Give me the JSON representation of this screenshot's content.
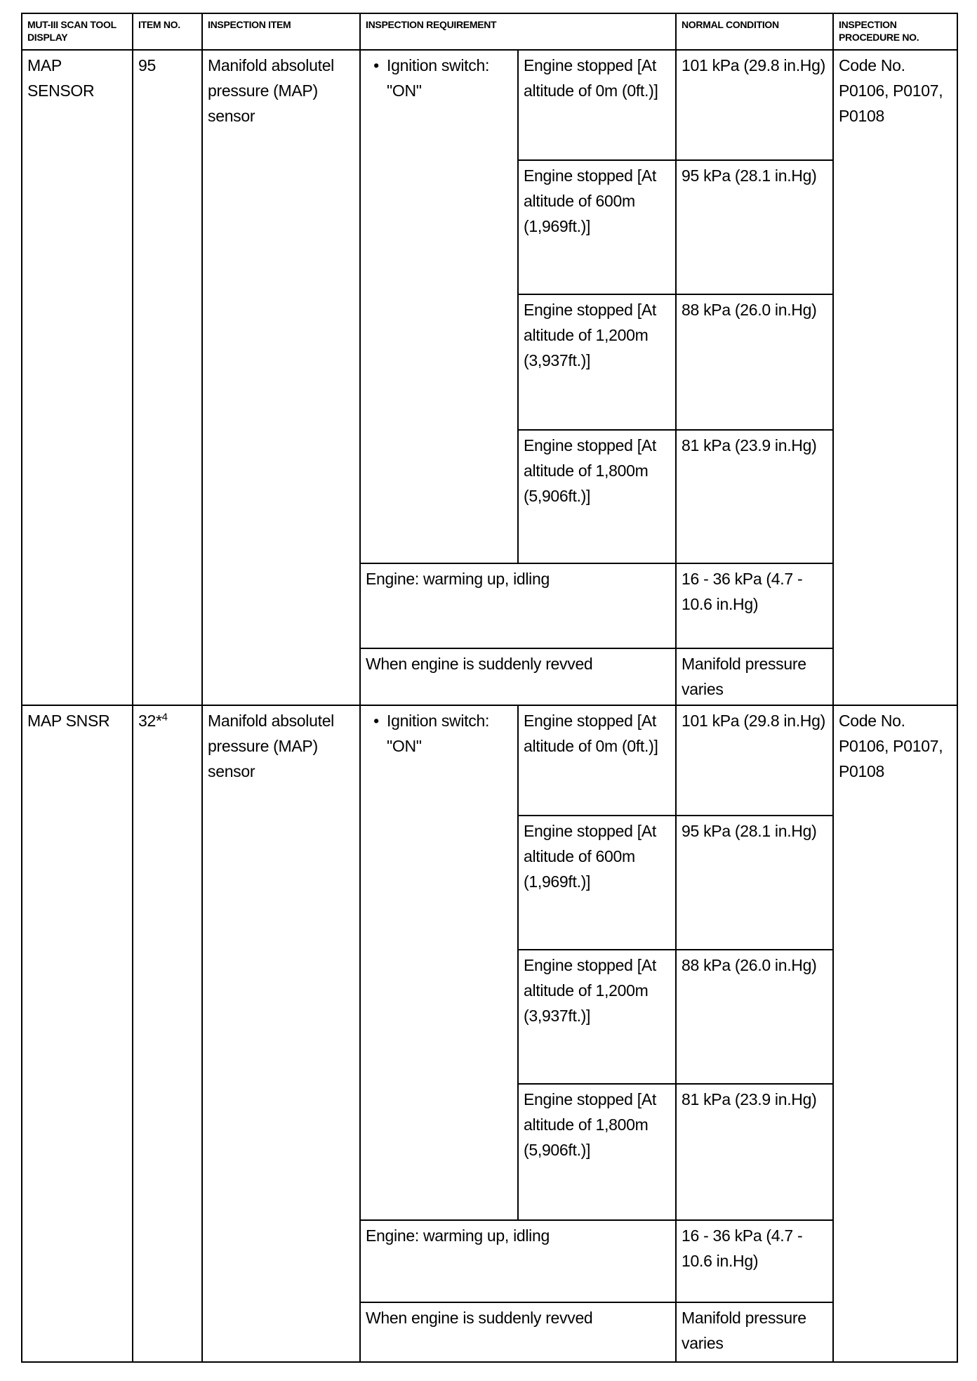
{
  "headers": [
    "MUT-III SCAN TOOL DISPLAY",
    "ITEM NO.",
    "INSPECTION ITEM",
    "INSPECTION REQUIREMENT",
    "NORMAL CONDITION",
    "INSPECTION PROCEDURE NO."
  ],
  "sections": [
    {
      "display": "MAP SENSOR",
      "item_no": "95",
      "item_no_sup": "",
      "inspection_item": "Manifold absolutel pressure (MAP) sensor",
      "ignition": "Ignition switch: \"ON\"",
      "procedure": "Code No. P0106, P0107, P0108",
      "altitude_rows": [
        {
          "condition": "Engine stopped [At altitude of 0m (0ft.)]",
          "normal": "101 kPa (29.8 in.Hg)"
        },
        {
          "condition": "Engine stopped [At altitude of 600m (1,969ft.)]",
          "normal": "95 kPa (28.1 in.Hg)"
        },
        {
          "condition": "Engine stopped [At altitude of 1,200m (3,937ft.)]",
          "normal": "88 kPa (26.0 in.Hg)"
        },
        {
          "condition": "Engine stopped [At altitude of 1,800m (5,906ft.)]",
          "normal": "81 kPa (23.9 in.Hg)"
        }
      ],
      "other_rows": [
        {
          "condition": "Engine: warming up, idling",
          "normal": "16 - 36 kPa (4.7 - 10.6 in.Hg)"
        },
        {
          "condition": "When engine is suddenly revved",
          "normal": "Manifold pressure varies"
        }
      ]
    },
    {
      "display": "MAP SNSR",
      "item_no": "32*",
      "item_no_sup": "4",
      "inspection_item": "Manifold absolutel pressure (MAP) sensor",
      "ignition": "Ignition switch: \"ON\"",
      "procedure": "Code No. P0106, P0107, P0108",
      "altitude_rows": [
        {
          "condition": "Engine stopped [At altitude of 0m (0ft.)]",
          "normal": "101 kPa (29.8 in.Hg)"
        },
        {
          "condition": "Engine stopped [At altitude of 600m (1,969ft.)]",
          "normal": "95 kPa (28.1 in.Hg)"
        },
        {
          "condition": "Engine stopped [At altitude of 1,200m (3,937ft.)]",
          "normal": "88 kPa (26.0 in.Hg)"
        },
        {
          "condition": "Engine stopped [At altitude of 1,800m (5,906ft.)]",
          "normal": "81 kPa (23.9 in.Hg)"
        }
      ],
      "other_rows": [
        {
          "condition": "Engine: warming up, idling",
          "normal": "16 - 36 kPa (4.7 - 10.6 in.Hg)"
        },
        {
          "condition": "When engine is suddenly revved",
          "normal": "Manifold pressure varies"
        }
      ]
    }
  ]
}
